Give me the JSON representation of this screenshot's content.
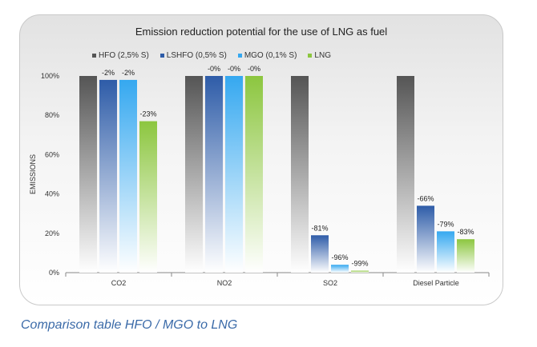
{
  "chart_data": {
    "type": "bar",
    "title": "Emission reduction potential for the use of LNG as fuel",
    "ylabel": "EMISSIONS",
    "xlabel": "",
    "ylim": [
      0,
      100
    ],
    "yticks": [
      "0%",
      "20%",
      "40%",
      "60%",
      "80%",
      "100%"
    ],
    "categories": [
      "CO2",
      "NO2",
      "SO2",
      "Diesel Particle"
    ],
    "series": [
      {
        "name": "HFO (2,5% S)",
        "values": [
          100,
          100,
          100,
          100
        ],
        "labels": [
          "",
          "",
          "",
          ""
        ],
        "color": "#555555"
      },
      {
        "name": "LSHFO (0,5% S)",
        "values": [
          98,
          100,
          19,
          34
        ],
        "labels": [
          "-2%",
          "-0%",
          "-81%",
          "-66%"
        ],
        "color": "#2e5ca8"
      },
      {
        "name": "MGO (0,1% S)",
        "values": [
          98,
          100,
          4,
          21
        ],
        "labels": [
          "-2%",
          "-0%",
          "-96%",
          "-79%"
        ],
        "color": "#35a8f0"
      },
      {
        "name": "LNG",
        "values": [
          77,
          100,
          1,
          17
        ],
        "labels": [
          "-23%",
          "-0%",
          "-99%",
          "-83%"
        ],
        "color": "#8cc63f"
      }
    ],
    "grid": false,
    "legend": "top-left"
  },
  "caption": "Comparison table HFO / MGO to LNG"
}
